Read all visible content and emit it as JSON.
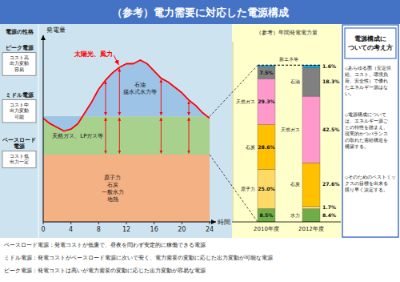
{
  "title": "（参考）電力需要に対応した電源構成",
  "annotations": {
    "left_panel": {
      "title": "電源の性格",
      "items": [
        {
          "heading": "ピーク電源",
          "text": "コスト高\n出力変動\n容易"
        },
        {
          "heading": "ミドル電源",
          "text": "コスト中\n出力変動\n可能"
        },
        {
          "heading": "ベースロード\n電源",
          "text": "コスト低\n出力一定"
        }
      ]
    },
    "right_panel": {
      "title": "電源構成に\nついての考え方",
      "items": [
        "◇あらゆる面（安定供\n給、コスト、環境負\n荷、安全性）で優れ\nたエネルギー源はな\nい。",
        "◇電源構成について\nは、エネルギー源ご\nとの特性を踏まえ、\n現実的かつバランス\nの取れた需給構造を\n構築する。",
        "◇そのためのベストミッ\nクスの目標を出来る\n限り早く決定する。"
      ]
    },
    "footer": [
      "ベースロード電源：発電コストが低廉で、昼夜を問わず安定的に稼働できる電源",
      "ミドル電源：発電コストがベースロード電源に次いで安く、電力需要の変動に応じた出力変動が可能な電源",
      "ピーク電源：発電コストは高いが電力需要の変動に応じた出力変動が容易な電源"
    ]
  },
  "chart_data": [
    {
      "type": "area",
      "stacked": false,
      "x": [
        0,
        1,
        2,
        3,
        4,
        5,
        6,
        7,
        8,
        9,
        10,
        11,
        12,
        13,
        14,
        15,
        16,
        17,
        18,
        19,
        20,
        21,
        22,
        23,
        24
      ],
      "xlim": [
        0,
        24
      ],
      "xticks": [
        0,
        4,
        8,
        12,
        16,
        20,
        24
      ],
      "ylim": [
        0,
        100
      ],
      "tick_labels": "x",
      "x_label": "時間",
      "y_label": "発電量",
      "series": [
        {
          "name": "原子力\n石炭\n一般水力\n地熱",
          "type": "area",
          "color": "#f4b183",
          "values": [
            37,
            37,
            37,
            37,
            37,
            37,
            37,
            37,
            37,
            37,
            37,
            37,
            37,
            37,
            37,
            37,
            37,
            37,
            37,
            37,
            37,
            37,
            37,
            37,
            37
          ]
        },
        {
          "name": "天然ガス、LPガス等",
          "type": "area",
          "color": "#a9d18e",
          "values": [
            58,
            58,
            58,
            58,
            58,
            58,
            58,
            58,
            58,
            58,
            58,
            58,
            58,
            58,
            58,
            58,
            58,
            58,
            58,
            58,
            58,
            58,
            58,
            58,
            58
          ]
        },
        {
          "name": "石油\n揚水式水力等",
          "type": "area",
          "color": "#9dc3e6",
          "values": [
            57,
            54,
            52,
            50,
            51,
            54,
            60,
            66,
            73,
            78,
            82,
            85,
            87,
            87,
            89,
            87,
            83,
            79,
            77,
            74,
            71,
            67,
            64,
            60,
            57
          ]
        },
        {
          "name": "太陽光、風力",
          "type": "line",
          "color": "#ff0000",
          "values": [
            57,
            54,
            52,
            50,
            51,
            54,
            60,
            66,
            73,
            78,
            82,
            85,
            87,
            87,
            89,
            87,
            83,
            79,
            77,
            74,
            71,
            67,
            64,
            60,
            57
          ]
        }
      ]
    },
    {
      "type": "bar",
      "stacked": true,
      "title": "（参考）年間発電電力量",
      "categories": [
        "2010年度",
        "2012年度"
      ],
      "ylim": [
        0,
        115
      ],
      "tick_labels": "x",
      "data_labels": true,
      "series": [
        {
          "name": "水力",
          "color": "#70ad47",
          "values": [
            8.5,
            8.4
          ],
          "value_labels": [
            "8.5%",
            "8.4%"
          ]
        },
        {
          "name": "原子力",
          "color": "#ffd966",
          "values": [
            25.0,
            1.7
          ],
          "value_labels": [
            "25.0%",
            "1.7%"
          ]
        },
        {
          "name": "石炭",
          "color": "#ffc000",
          "values": [
            28.6,
            27.6
          ],
          "value_labels": [
            "28.6%",
            "27.6%"
          ]
        },
        {
          "name": "天然ガス",
          "color": "#ff99cc",
          "values": [
            29.3,
            42.5
          ],
          "value_labels": [
            "29.3%",
            "42.5%"
          ]
        },
        {
          "name": "石油",
          "color": "#808080",
          "values": [
            7.5,
            18.3
          ],
          "value_labels": [
            "7.5%",
            "18.3%"
          ]
        },
        {
          "name": "新エネ等",
          "color": "#00b0f0",
          "values": [
            1.0,
            1.6
          ],
          "value_labels": [
            null,
            "1.6%"
          ]
        }
      ]
    }
  ]
}
